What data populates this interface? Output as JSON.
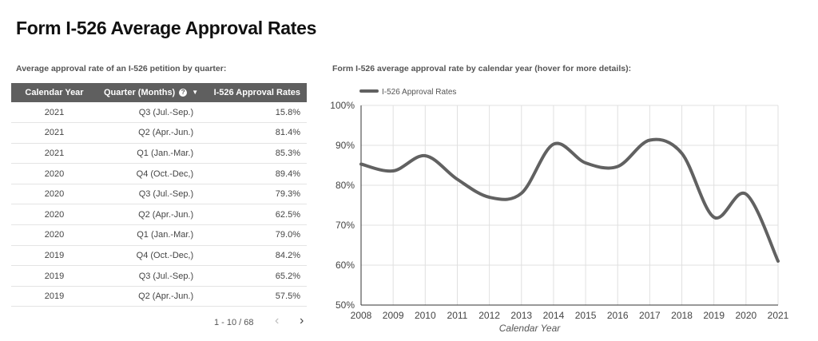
{
  "title": "Form I-526 Average Approval Rates",
  "table_subtitle": "Average approval rate of an I-526 petition by quarter:",
  "chart_subtitle": "Form I-526 average approval rate by calendar year (hover for more details):",
  "table": {
    "headers": [
      "Calendar Year",
      "Quarter (Months)",
      "I-526 Approval Rates"
    ],
    "rows": [
      [
        "2021",
        "Q3 (Jul.-Sep.)",
        "15.8%"
      ],
      [
        "2021",
        "Q2 (Apr.-Jun.)",
        "81.4%"
      ],
      [
        "2021",
        "Q1 (Jan.-Mar.)",
        "85.3%"
      ],
      [
        "2020",
        "Q4 (Oct.-Dec,)",
        "89.4%"
      ],
      [
        "2020",
        "Q3 (Jul.-Sep.)",
        "79.3%"
      ],
      [
        "2020",
        "Q2 (Apr.-Jun.)",
        "62.5%"
      ],
      [
        "2020",
        "Q1 (Jan.-Mar.)",
        "79.0%"
      ],
      [
        "2019",
        "Q4 (Oct.-Dec,)",
        "84.2%"
      ],
      [
        "2019",
        "Q3 (Jul.-Sep.)",
        "65.2%"
      ],
      [
        "2019",
        "Q2 (Apr.-Jun.)",
        "57.5%"
      ]
    ]
  },
  "pager": {
    "text": "1 - 10 / 68",
    "prev": "‹",
    "next": "›"
  },
  "colors": {
    "header_bg": "#5f5f5f",
    "line": "#616161",
    "grid": "#e0e0e0"
  },
  "chart_data": {
    "type": "line",
    "title": "Form I-526 average approval rate by calendar year (hover for more details):",
    "xlabel": "Calendar Year",
    "ylabel": "",
    "legend": "I-526 Approval Rates",
    "legend_position": "top-left",
    "x": [
      2008,
      2009,
      2010,
      2011,
      2012,
      2013,
      2014,
      2015,
      2016,
      2017,
      2018,
      2019,
      2020,
      2021
    ],
    "series": [
      {
        "name": "I-526 Approval Rates",
        "values": [
          85.3,
          83.6,
          87.4,
          81.5,
          77.0,
          78.0,
          90.3,
          85.6,
          84.7,
          91.3,
          88.0,
          72.0,
          77.8,
          61.0
        ]
      }
    ],
    "ylim": [
      50,
      100
    ],
    "yticks": [
      "50%",
      "60%",
      "70%",
      "80%",
      "90%",
      "100%"
    ],
    "grid": true
  }
}
